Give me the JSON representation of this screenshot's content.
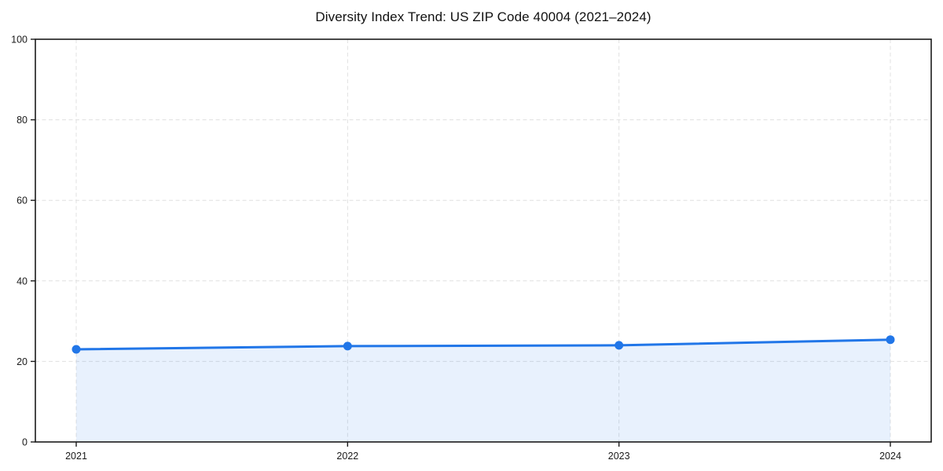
{
  "chart_data": {
    "type": "line",
    "title": "Diversity Index Trend: US ZIP Code 40004 (2021–2024)",
    "x": [
      2021,
      2022,
      2023,
      2024
    ],
    "series": [
      {
        "name": "Diversity Index",
        "values": [
          23.0,
          23.8,
          24.0,
          25.4
        ]
      }
    ],
    "xlabel": "",
    "ylabel": "",
    "ylim": [
      0,
      100
    ],
    "yticks": [
      0,
      20,
      40,
      60,
      80,
      100
    ],
    "xticks": [
      "2021",
      "2022",
      "2023",
      "2024"
    ],
    "grid": "dashed horizontal and vertical gridlines",
    "legend_position": "none",
    "area_fill_under_line": true,
    "colors": {
      "line": "#2176e8",
      "marker": "#2176e8",
      "area_fill": "#2176e8",
      "area_fill_opacity": 0.1,
      "grid": "#e0e0e0",
      "axis_border": "#1a1a1a",
      "tick_label": "#1a1a1a",
      "background": "#ffffff"
    }
  }
}
